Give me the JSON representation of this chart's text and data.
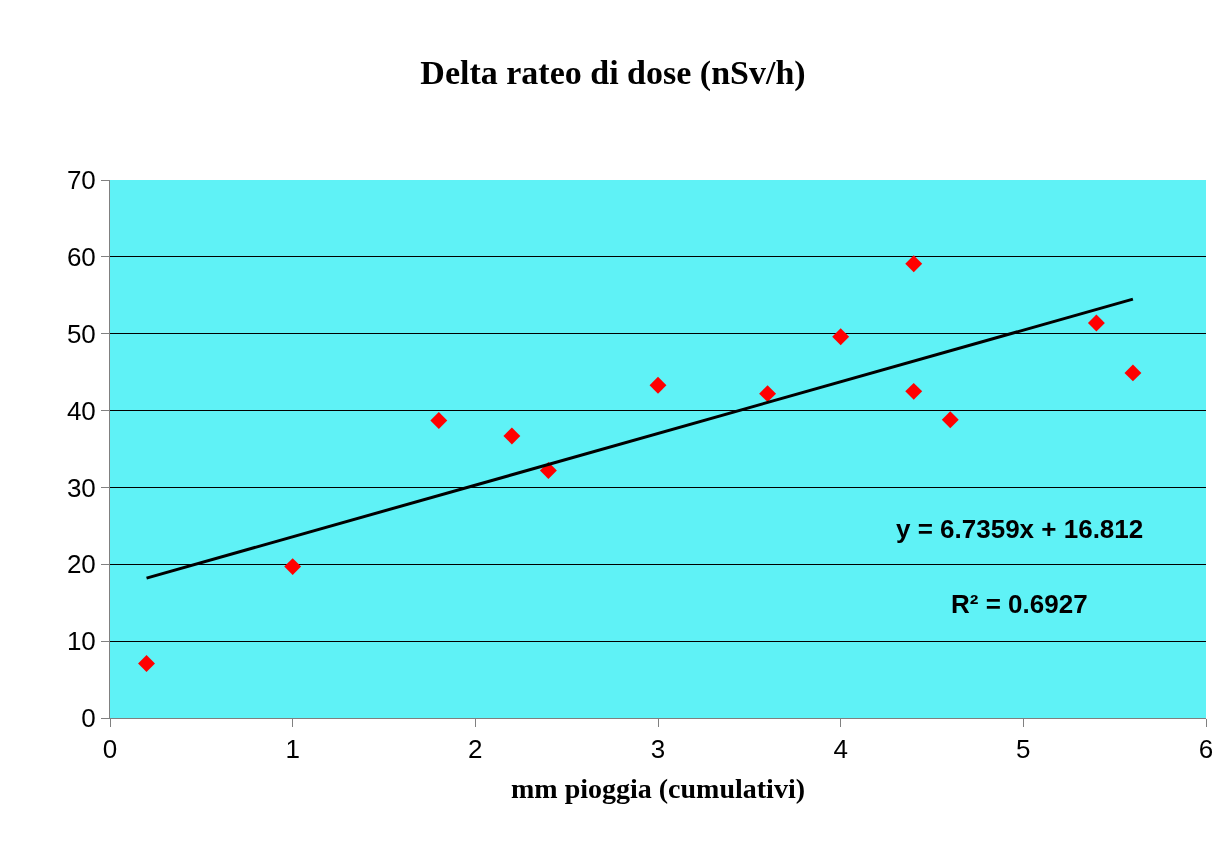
{
  "chart_data": {
    "type": "scatter",
    "title": "Delta rateo di dose (nSv/h)",
    "xlabel": "mm pioggia (cumulativi)",
    "series": [
      {
        "color": "#ff0000",
        "marker": "diamond",
        "x": [
          0.2,
          1.0,
          1.8,
          2.2,
          2.4,
          3.0,
          3.6,
          4.0,
          4.4,
          4.4,
          4.6,
          5.4,
          5.6
        ],
        "values": [
          7.1,
          19.7,
          38.7,
          36.7,
          32.2,
          43.3,
          42.2,
          49.6,
          59.1,
          42.5,
          38.8,
          51.4,
          44.9
        ]
      },
      {
        "type": "line",
        "color": "#000000",
        "x": [
          0.2,
          5.6
        ],
        "values": [
          18.2,
          54.5
        ]
      }
    ],
    "annotations": [
      "y = 6.7359x + 16.812",
      "R² = 0.6927"
    ],
    "xlim": [
      0,
      6
    ],
    "xticks": [
      0,
      1,
      2,
      3,
      4,
      5,
      6
    ],
    "ylim": [
      0,
      70
    ],
    "yticks": [
      0,
      10,
      20,
      30,
      40,
      50,
      60,
      70
    ],
    "grid": "y"
  }
}
